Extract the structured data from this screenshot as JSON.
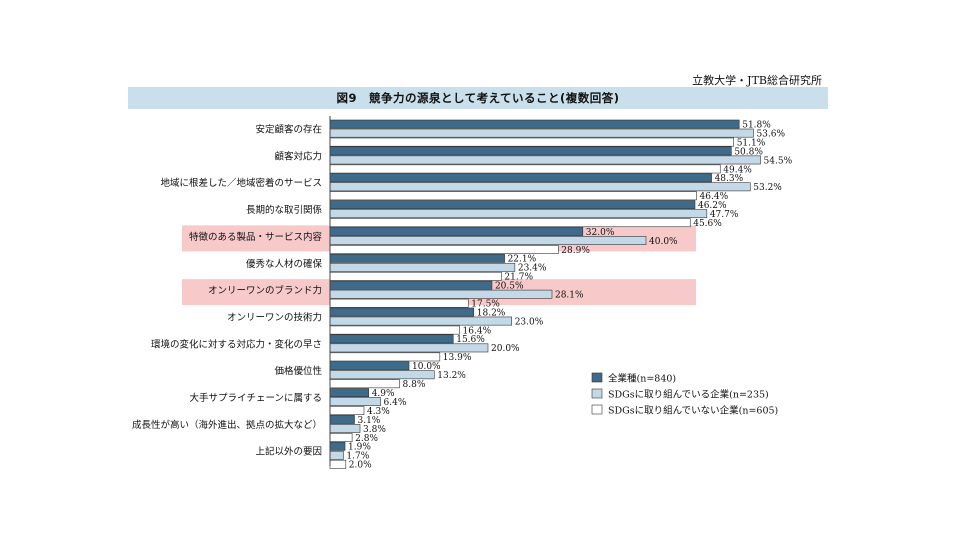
{
  "header": {
    "source": "立教大学・JTB総合研究所",
    "title": "図9　競争力の源泉として考えていること(複数回答)"
  },
  "colors": {
    "series_all": "#3e6b8a",
    "series_sdgs": "#c3d9e8",
    "series_non_sdgs": "#ffffff",
    "highlight": "#f7c9c9",
    "title_band": "#c9dfeb"
  },
  "chart_data": {
    "type": "bar",
    "orientation": "horizontal",
    "categories": [
      "安定顧客の存在",
      "顧客対応力",
      "地域に根差した／地域密着のサービス",
      "長期的な取引関係",
      "特徴のある製品・サービス内容",
      "優秀な人材の確保",
      "オンリーワンのブランド力",
      "オンリーワンの技術力",
      "環境の変化に対する対応力・変化の早さ",
      "価格優位性",
      "大手サプライチェーンに属する",
      "成長性が高い（海外進出、拠点の拡大など）",
      "上記以外の要因"
    ],
    "highlighted_categories": [
      "特徴のある製品・サービス内容",
      "オンリーワンのブランド力"
    ],
    "series": [
      {
        "name": "全業種(n=840)",
        "values": [
          51.8,
          50.8,
          48.3,
          46.2,
          32.0,
          22.1,
          20.5,
          18.2,
          15.6,
          10.0,
          4.9,
          3.1,
          1.9
        ],
        "labels": [
          "51.8%",
          "50.8%",
          "48.3%",
          "46.2%",
          "32.0%",
          "22.1%",
          "20.5%",
          "18.2%",
          "15.6%",
          "10.0%",
          "4.9%",
          "3.1%",
          "1.9%"
        ]
      },
      {
        "name": "SDGsに取り組んでいる企業(n=235)",
        "values": [
          53.6,
          54.5,
          53.2,
          47.7,
          40.0,
          23.4,
          28.1,
          23.0,
          20.0,
          13.2,
          6.4,
          3.8,
          1.7
        ],
        "labels": [
          "53.6%",
          "54.5%",
          "53.2%",
          "47.7%",
          "40.0%",
          "23.4%",
          "28.1%",
          "23.0%",
          "20.0%",
          "13.2%",
          "6.4%",
          "3.8%",
          "1.7%"
        ]
      },
      {
        "name": "SDGsに取り組んでいない企業(n=605)",
        "values": [
          51.1,
          49.4,
          46.4,
          45.6,
          28.9,
          21.7,
          17.5,
          16.4,
          13.9,
          8.8,
          4.3,
          2.8,
          2.0
        ],
        "labels": [
          "51.1%",
          "49.4%",
          "46.4%",
          "45.6%",
          "28.9%",
          "21.7%",
          "17.5%",
          "16.4%",
          "13.9%",
          "8.8%",
          "4.3%",
          "2.8%",
          "2.0%"
        ]
      }
    ],
    "xlim": [
      0,
      60
    ],
    "grid": false,
    "legend_position": "bottom-right"
  }
}
